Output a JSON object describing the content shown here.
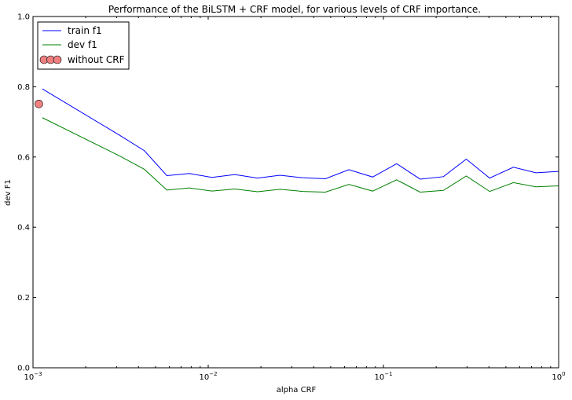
{
  "chart_data": {
    "type": "line",
    "title": "Performance of the BiLSTM + CRF model, for various levels of CRF importance.",
    "xlabel": "alpha CRF",
    "ylabel": "dev F1",
    "xscale": "log",
    "xlim": [
      0.001,
      1
    ],
    "ylim": [
      0,
      1
    ],
    "grid": false,
    "legend_position": "top-left",
    "x_ticks": [
      {
        "value": 0.001,
        "base": "10",
        "exp": "−3"
      },
      {
        "value": 0.01,
        "base": "10",
        "exp": "−2"
      },
      {
        "value": 0.1,
        "base": "10",
        "exp": "−1"
      },
      {
        "value": 1,
        "base": "10",
        "exp": "0"
      }
    ],
    "y_ticks": [
      "0.0",
      "0.2",
      "0.4",
      "0.6",
      "0.8",
      "1.0"
    ],
    "x": [
      0.00113,
      0.00312,
      0.00432,
      0.00581,
      0.00781,
      0.0105,
      0.0142,
      0.0191,
      0.0257,
      0.0346,
      0.0466,
      0.0635,
      0.0868,
      0.119,
      0.162,
      0.22,
      0.297,
      0.404,
      0.552,
      0.742,
      1.0
    ],
    "series": [
      {
        "name": "train f1",
        "color": "#0000ff",
        "values": [
          0.794,
          0.662,
          0.618,
          0.547,
          0.553,
          0.542,
          0.55,
          0.54,
          0.548,
          0.541,
          0.538,
          0.564,
          0.543,
          0.581,
          0.537,
          0.544,
          0.594,
          0.54,
          0.571,
          0.555,
          0.559
        ]
      },
      {
        "name": "dev f1",
        "color": "#008000",
        "values": [
          0.712,
          0.603,
          0.565,
          0.506,
          0.512,
          0.503,
          0.509,
          0.501,
          0.508,
          0.502,
          0.5,
          0.522,
          0.503,
          0.535,
          0.5,
          0.505,
          0.546,
          0.502,
          0.527,
          0.515,
          0.518
        ]
      }
    ],
    "scatter": {
      "name": "without CRF",
      "color": "#f08080",
      "x": 0.00108,
      "y": 0.751
    }
  }
}
